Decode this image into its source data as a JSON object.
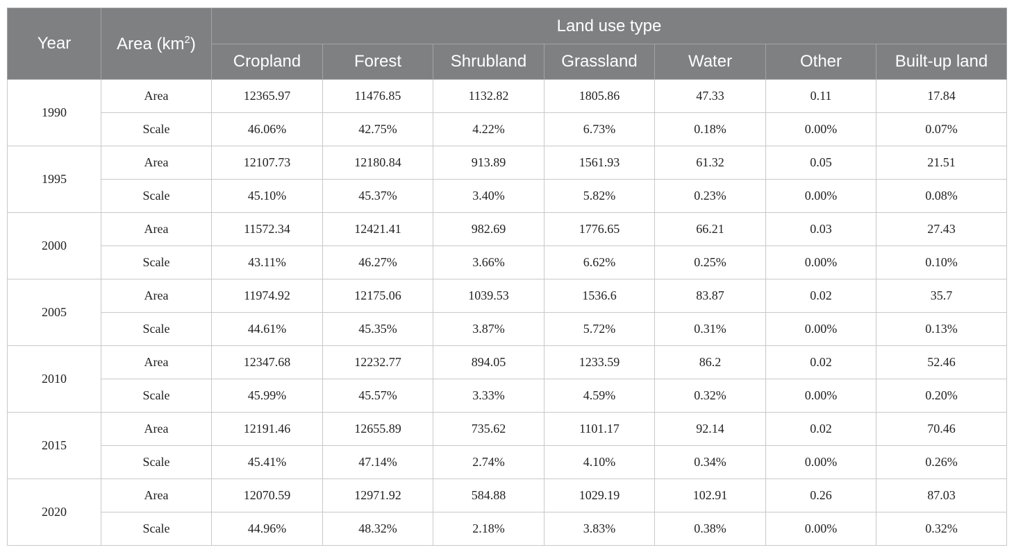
{
  "header": {
    "year": "Year",
    "area_prefix": "Area (km",
    "area_sup": "2",
    "area_suffix": ")",
    "group": "Land use type",
    "columns": [
      "Cropland",
      "Forest",
      "Shrubland",
      "Grassland",
      "Water",
      "Other",
      "Built-up land"
    ]
  },
  "rows": [
    {
      "year": "1990",
      "area_label": "Area",
      "area": [
        "12365.97",
        "11476.85",
        "1132.82",
        "1805.86",
        "47.33",
        "0.11",
        "17.84"
      ],
      "scale_label": "Scale",
      "scale": [
        "46.06%",
        "42.75%",
        "4.22%",
        "6.73%",
        "0.18%",
        "0.00%",
        "0.07%"
      ]
    },
    {
      "year": "1995",
      "area_label": "Area",
      "area": [
        "12107.73",
        "12180.84",
        "913.89",
        "1561.93",
        "61.32",
        "0.05",
        "21.51"
      ],
      "scale_label": "Scale",
      "scale": [
        "45.10%",
        "45.37%",
        "3.40%",
        "5.82%",
        "0.23%",
        "0.00%",
        "0.08%"
      ]
    },
    {
      "year": "2000",
      "area_label": "Area",
      "area": [
        "11572.34",
        "12421.41",
        "982.69",
        "1776.65",
        "66.21",
        "0.03",
        "27.43"
      ],
      "scale_label": "Scale",
      "scale": [
        "43.11%",
        "46.27%",
        "3.66%",
        "6.62%",
        "0.25%",
        "0.00%",
        "0.10%"
      ]
    },
    {
      "year": "2005",
      "area_label": "Area",
      "area": [
        "11974.92",
        "12175.06",
        "1039.53",
        "1536.6",
        "83.87",
        "0.02",
        "35.7"
      ],
      "scale_label": "Scale",
      "scale": [
        "44.61%",
        "45.35%",
        "3.87%",
        "5.72%",
        "0.31%",
        "0.00%",
        "0.13%"
      ]
    },
    {
      "year": "2010",
      "area_label": "Area",
      "area": [
        "12347.68",
        "12232.77",
        "894.05",
        "1233.59",
        "86.2",
        "0.02",
        "52.46"
      ],
      "scale_label": "Scale",
      "scale": [
        "45.99%",
        "45.57%",
        "3.33%",
        "4.59%",
        "0.32%",
        "0.00%",
        "0.20%"
      ]
    },
    {
      "year": "2015",
      "area_label": "Area",
      "area": [
        "12191.46",
        "12655.89",
        "735.62",
        "1101.17",
        "92.14",
        "0.02",
        "70.46"
      ],
      "scale_label": "Scale",
      "scale": [
        "45.41%",
        "47.14%",
        "2.74%",
        "4.10%",
        "0.34%",
        "0.00%",
        "0.26%"
      ]
    },
    {
      "year": "2020",
      "area_label": "Area",
      "area": [
        "12070.59",
        "12971.92",
        "584.88",
        "1029.19",
        "102.91",
        "0.26",
        "87.03"
      ],
      "scale_label": "Scale",
      "scale": [
        "44.96%",
        "48.32%",
        "2.18%",
        "3.83%",
        "0.38%",
        "0.00%",
        "0.32%"
      ]
    }
  ]
}
